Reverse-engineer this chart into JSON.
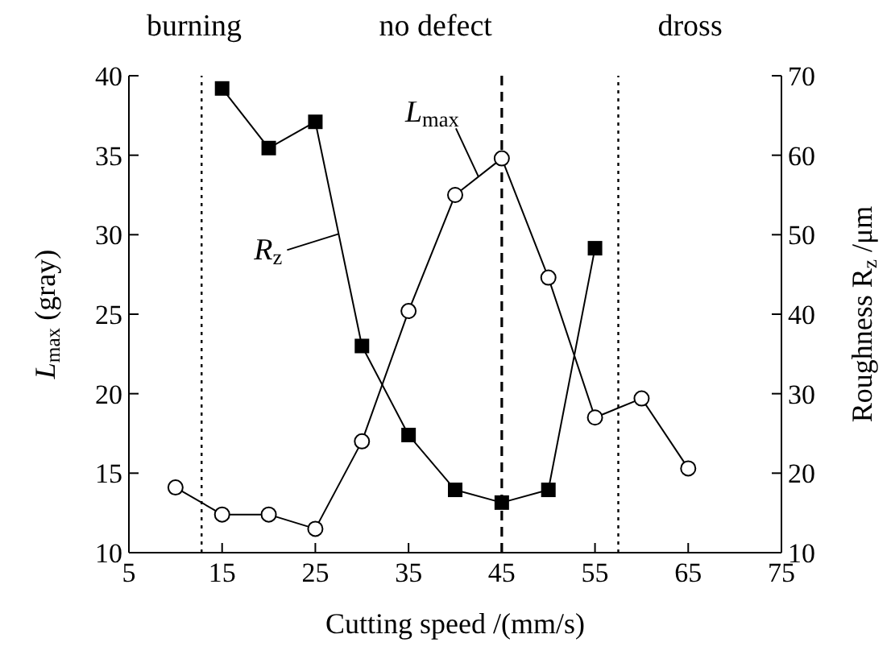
{
  "chart_data": {
    "type": "line",
    "xlabel": "Cutting speed /(mm/s)",
    "ylabel": "L$_{max}$ (gray)",
    "y2label": "Roughness R$_{z}$ /μm",
    "annotations": [
      "burning",
      "no defect",
      "dross"
    ],
    "xlim": [
      5,
      75
    ],
    "xticks": [
      5,
      15,
      25,
      35,
      45,
      55,
      65,
      75
    ],
    "ylim": [
      10,
      40
    ],
    "yticks": [
      10,
      15,
      20,
      25,
      30,
      35,
      40
    ],
    "y2lim": [
      10,
      70
    ],
    "y2ticks": [
      10,
      20,
      30,
      40,
      50,
      60,
      70
    ],
    "series": [
      {
        "name": "L$_{max}$",
        "color": "#000000",
        "marker": "circle",
        "x": [
          10,
          15,
          20,
          25,
          30,
          35,
          40,
          45,
          50,
          55,
          60,
          65
        ],
        "values": [
          14.1,
          12.4,
          12.4,
          11.5,
          17,
          25.2,
          32.5,
          34.8,
          27.3,
          18.5,
          19.7,
          15.3
        ]
      },
      {
        "name": "R$_{z}$",
        "color": "#000000",
        "marker": "square",
        "axis": "y2",
        "x": [
          15,
          20,
          25,
          30,
          35,
          40,
          45,
          50,
          55
        ],
        "values": [
          68.4,
          60.9,
          64.2,
          36,
          24.8,
          17.9,
          16.3,
          17.9,
          48.3
        ]
      }
    ],
    "ref_lines": [
      {
        "axis": "x",
        "value": 12.8,
        "label": null,
        "line_style": "dotted",
        "color": "#000000"
      },
      {
        "axis": "x",
        "value": 45,
        "label": null,
        "line_style": "dashed",
        "color": "#000000"
      },
      {
        "axis": "x",
        "value": 57.5,
        "label": null,
        "line_style": "dotted",
        "color": "#000000"
      }
    ]
  }
}
